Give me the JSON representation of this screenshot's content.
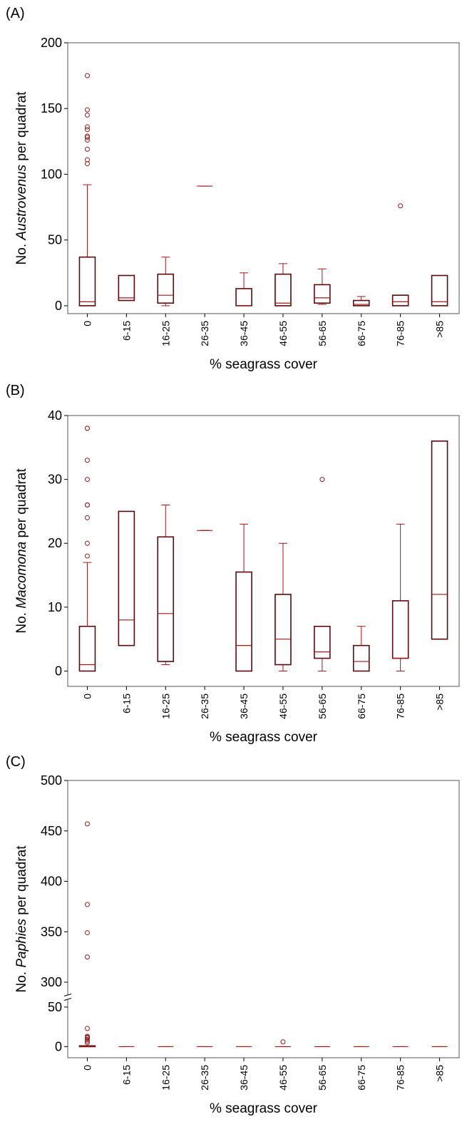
{
  "colors": {
    "box": "#5a0a0a",
    "whisker": "#a01818",
    "outlier": "#a01818",
    "axis": "#000000"
  },
  "chart_data": [
    {
      "panel": "(A)",
      "type": "boxplot",
      "xlabel": "% seagrass cover",
      "ylabel_pre": "No. ",
      "ylabel_taxon": "Austrovenus",
      "ylabel_post": " per quadrat",
      "categories": [
        "0",
        "6-15",
        "16-25",
        "26-35",
        "36-45",
        "46-55",
        "56-65",
        "66-75",
        "76-85",
        ">85"
      ],
      "ylim": [
        -6,
        200
      ],
      "yticks": [
        0,
        50,
        100,
        150,
        200
      ],
      "boxes": [
        {
          "whisker_low": 0,
          "q1": 0,
          "median": 3,
          "q3": 37,
          "whisker_high": 92,
          "outliers": [
            108,
            111,
            119,
            126,
            128,
            129,
            134,
            136,
            145,
            149,
            175
          ]
        },
        {
          "whisker_low": 4,
          "q1": 4,
          "median": 6,
          "q3": 23,
          "whisker_high": 23,
          "outliers": []
        },
        {
          "whisker_low": 0,
          "q1": 2,
          "median": 8,
          "q3": 24,
          "whisker_high": 37,
          "outliers": []
        },
        {
          "whisker_low": 91,
          "q1": 91,
          "median": 91,
          "q3": 91,
          "whisker_high": 91,
          "outliers": []
        },
        {
          "whisker_low": 0,
          "q1": 0,
          "median": 0,
          "q3": 13,
          "whisker_high": 25,
          "outliers": []
        },
        {
          "whisker_low": 0,
          "q1": 0,
          "median": 2,
          "q3": 24,
          "whisker_high": 32,
          "outliers": []
        },
        {
          "whisker_low": 1,
          "q1": 2,
          "median": 6,
          "q3": 16,
          "whisker_high": 28,
          "outliers": []
        },
        {
          "whisker_low": 0,
          "q1": 0,
          "median": 1,
          "q3": 4,
          "whisker_high": 7,
          "outliers": []
        },
        {
          "whisker_low": 0,
          "q1": 0,
          "median": 3,
          "q3": 8,
          "whisker_high": 8,
          "outliers": [
            76
          ]
        },
        {
          "whisker_low": 0,
          "q1": 0,
          "median": 3,
          "q3": 23,
          "whisker_high": 23,
          "outliers": []
        }
      ]
    },
    {
      "panel": "(B)",
      "type": "boxplot",
      "xlabel": "% seagrass cover",
      "ylabel_pre": "No. ",
      "ylabel_taxon": "Macomona",
      "ylabel_post": " per quadrat",
      "categories": [
        "0",
        "6-15",
        "16-25",
        "26-35",
        "36-45",
        "46-55",
        "56-65",
        "66-75",
        "76-85",
        ">85"
      ],
      "ylim": [
        -2.4,
        40
      ],
      "yticks": [
        0,
        10,
        20,
        30,
        40
      ],
      "boxes": [
        {
          "whisker_low": 0,
          "q1": 0,
          "median": 1,
          "q3": 7,
          "whisker_high": 17,
          "outliers": [
            18,
            20,
            24,
            26,
            26,
            30,
            33,
            38,
            38
          ]
        },
        {
          "whisker_low": 4,
          "q1": 4,
          "median": 8,
          "q3": 25,
          "whisker_high": 25,
          "outliers": []
        },
        {
          "whisker_low": 1,
          "q1": 1.5,
          "median": 9,
          "q3": 21,
          "whisker_high": 26,
          "outliers": []
        },
        {
          "whisker_low": 22,
          "q1": 22,
          "median": 22,
          "q3": 22,
          "whisker_high": 22,
          "outliers": []
        },
        {
          "whisker_low": 0,
          "q1": 0,
          "median": 4,
          "q3": 15.5,
          "whisker_high": 23,
          "outliers": []
        },
        {
          "whisker_low": 0,
          "q1": 1,
          "median": 5,
          "q3": 12,
          "whisker_high": 20,
          "outliers": []
        },
        {
          "whisker_low": 0,
          "q1": 2,
          "median": 3,
          "q3": 7,
          "whisker_high": 7,
          "outliers": [
            30
          ]
        },
        {
          "whisker_low": 0,
          "q1": 0,
          "median": 1.5,
          "q3": 4,
          "whisker_high": 7,
          "outliers": []
        },
        {
          "whisker_low": 0,
          "q1": 2,
          "median": 2,
          "q3": 11,
          "whisker_high": 23,
          "outliers": []
        },
        {
          "whisker_low": 5,
          "q1": 5,
          "median": 12,
          "q3": 36,
          "whisker_high": 36,
          "outliers": []
        }
      ]
    },
    {
      "panel": "(C)",
      "type": "boxplot",
      "xlabel": "% seagrass cover",
      "ylabel_pre": "No. ",
      "ylabel_taxon": "Paphies",
      "ylabel_post": " per quadrat",
      "categories": [
        "0",
        "6-15",
        "16-25",
        "26-35",
        "36-45",
        "46-55",
        "56-65",
        "66-75",
        "76-85",
        ">85"
      ],
      "axis_break": {
        "lower_max": 58,
        "upper_min": 288
      },
      "ylim": [
        -14,
        500
      ],
      "yticks": [
        0,
        50,
        300,
        350,
        400,
        450,
        500
      ],
      "boxes": [
        {
          "whisker_low": 0,
          "q1": 0,
          "median": 0,
          "q3": 1,
          "whisker_high": 1,
          "outliers": [
            5,
            7,
            9,
            11,
            12,
            13,
            23,
            325,
            349,
            377,
            457
          ]
        },
        {
          "whisker_low": 0,
          "q1": 0,
          "median": 0,
          "q3": 0,
          "whisker_high": 0,
          "outliers": []
        },
        {
          "whisker_low": 0,
          "q1": 0,
          "median": 0,
          "q3": 0,
          "whisker_high": 0,
          "outliers": []
        },
        {
          "whisker_low": 0,
          "q1": 0,
          "median": 0,
          "q3": 0,
          "whisker_high": 0,
          "outliers": []
        },
        {
          "whisker_low": 0,
          "q1": 0,
          "median": 0,
          "q3": 0,
          "whisker_high": 0,
          "outliers": []
        },
        {
          "whisker_low": 0,
          "q1": 0,
          "median": 0,
          "q3": 0,
          "whisker_high": 0,
          "outliers": [
            6
          ]
        },
        {
          "whisker_low": 0,
          "q1": 0,
          "median": 0,
          "q3": 0,
          "whisker_high": 0,
          "outliers": []
        },
        {
          "whisker_low": 0,
          "q1": 0,
          "median": 0,
          "q3": 0,
          "whisker_high": 0,
          "outliers": []
        },
        {
          "whisker_low": 0,
          "q1": 0,
          "median": 0,
          "q3": 0,
          "whisker_high": 0,
          "outliers": []
        },
        {
          "whisker_low": 0,
          "q1": 0,
          "median": 0,
          "q3": 0,
          "whisker_high": 0,
          "outliers": []
        }
      ]
    }
  ]
}
